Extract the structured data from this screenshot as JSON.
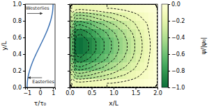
{
  "chart_data": [
    {
      "type": "line",
      "x_label": "τ/τ₀",
      "y_label": "y/L",
      "x": [
        -1,
        -0.951,
        -0.809,
        -0.588,
        -0.309,
        0,
        0.309,
        0.588,
        0.809,
        0.951,
        1
      ],
      "values": [
        0,
        0.1,
        0.2,
        0.3,
        0.4,
        0.5,
        0.6,
        0.7,
        0.8,
        0.9,
        1
      ],
      "color": "#3d72b4",
      "xlim": [
        -1.15,
        1.15
      ],
      "ylim": [
        0,
        1
      ],
      "xticks": [
        {
          "value": -1,
          "label": "−1"
        },
        0,
        1
      ],
      "yticks": [
        {
          "value": 0,
          "label": "0.0"
        },
        {
          "value": 0.2,
          "label": "0.2"
        },
        {
          "value": 0.4,
          "label": "0.4"
        },
        {
          "value": 0.6,
          "label": "0.6"
        },
        {
          "value": 0.8,
          "label": "0.8"
        },
        {
          "value": 1,
          "label": "1.0"
        }
      ],
      "annotations": [
        {
          "text": "Westerlies",
          "x": -1.1,
          "y": 0.93
        },
        {
          "text": "Easterlies",
          "x": -0.6,
          "y": 0.05
        }
      ]
    },
    {
      "type": "heatmap",
      "x_label": "x/L",
      "colorbar_label": "ψ/|ψ₀|",
      "xlim": [
        0,
        2
      ],
      "ylim": [
        0,
        1
      ],
      "xticks": [
        {
          "value": 0,
          "label": "0.0"
        },
        {
          "value": 0.5,
          "label": "0.5"
        },
        {
          "value": 1,
          "label": "1.0"
        },
        {
          "value": 1.5,
          "label": "1.5"
        },
        {
          "value": 2,
          "label": "2.0"
        }
      ],
      "yticks": [
        0,
        0.2,
        0.4,
        0.6,
        0.8,
        1
      ],
      "tick_labels": "x",
      "cells": [
        [
          -0.1,
          -0.15,
          -0.16,
          -0.15,
          -0.14,
          -0.13,
          -0.12,
          -0.11,
          -0.1,
          -0.1,
          -0.09,
          -0.08,
          -0.07,
          -0.06,
          -0.05,
          -0.04,
          -0.03,
          -0.02,
          -0.01,
          0.0
        ],
        [
          -0.29,
          -0.44,
          -0.45,
          -0.43,
          -0.41,
          -0.38,
          -0.35,
          -0.33,
          -0.3,
          -0.28,
          -0.25,
          -0.22,
          -0.2,
          -0.17,
          -0.15,
          -0.12,
          -0.09,
          -0.07,
          -0.04,
          -0.01
        ],
        [
          -0.45,
          -0.69,
          -0.71,
          -0.67,
          -0.64,
          -0.59,
          -0.55,
          -0.52,
          -0.47,
          -0.43,
          -0.39,
          -0.35,
          -0.31,
          -0.27,
          -0.23,
          -0.18,
          -0.14,
          -0.11,
          -0.06,
          -0.02
        ],
        [
          -0.57,
          -0.87,
          -0.89,
          -0.85,
          -0.8,
          -0.75,
          -0.69,
          -0.65,
          -0.6,
          -0.54,
          -0.49,
          -0.44,
          -0.39,
          -0.34,
          -0.29,
          -0.23,
          -0.18,
          -0.13,
          -0.08,
          -0.03
        ],
        [
          -0.63,
          -0.97,
          -0.99,
          -0.94,
          -0.89,
          -0.83,
          -0.77,
          -0.72,
          -0.66,
          -0.6,
          -0.54,
          -0.48,
          -0.43,
          -0.38,
          -0.32,
          -0.26,
          -0.2,
          -0.15,
          -0.09,
          -0.03
        ],
        [
          -0.63,
          -0.97,
          -0.99,
          -0.94,
          -0.89,
          -0.83,
          -0.77,
          -0.72,
          -0.66,
          -0.6,
          -0.54,
          -0.48,
          -0.43,
          -0.38,
          -0.32,
          -0.26,
          -0.2,
          -0.15,
          -0.09,
          -0.03
        ],
        [
          -0.57,
          -0.87,
          -0.89,
          -0.85,
          -0.8,
          -0.75,
          -0.69,
          -0.65,
          -0.6,
          -0.54,
          -0.49,
          -0.44,
          -0.39,
          -0.34,
          -0.29,
          -0.23,
          -0.18,
          -0.13,
          -0.08,
          -0.03
        ],
        [
          -0.45,
          -0.69,
          -0.71,
          -0.67,
          -0.64,
          -0.59,
          -0.55,
          -0.52,
          -0.47,
          -0.43,
          -0.39,
          -0.35,
          -0.31,
          -0.27,
          -0.23,
          -0.18,
          -0.14,
          -0.11,
          -0.06,
          -0.02
        ],
        [
          -0.29,
          -0.44,
          -0.45,
          -0.43,
          -0.41,
          -0.38,
          -0.35,
          -0.33,
          -0.3,
          -0.28,
          -0.25,
          -0.22,
          -0.2,
          -0.17,
          -0.15,
          -0.12,
          -0.09,
          -0.07,
          -0.04,
          -0.01
        ],
        [
          -0.1,
          -0.15,
          -0.16,
          -0.15,
          -0.14,
          -0.13,
          -0.12,
          -0.11,
          -0.1,
          -0.1,
          -0.09,
          -0.08,
          -0.07,
          -0.06,
          -0.05,
          -0.04,
          -0.03,
          -0.02,
          -0.01,
          0.0
        ]
      ],
      "colorbar_lim": [
        -1,
        0
      ],
      "colorbar_ticks": [
        {
          "value": 0,
          "label": "0.0"
        },
        {
          "value": -0.2,
          "label": "−0.2"
        },
        {
          "value": -0.4,
          "label": "−0.4"
        },
        {
          "value": -0.6,
          "label": "−0.6"
        },
        {
          "value": -0.8,
          "label": "−0.8"
        },
        {
          "value": -1,
          "label": "−1.0"
        }
      ],
      "contour_levels": [
        -0.9,
        -0.8,
        -0.7,
        -0.6,
        -0.5,
        -0.4,
        -0.3,
        -0.2,
        -0.1
      ],
      "line_style": "dashed"
    }
  ]
}
